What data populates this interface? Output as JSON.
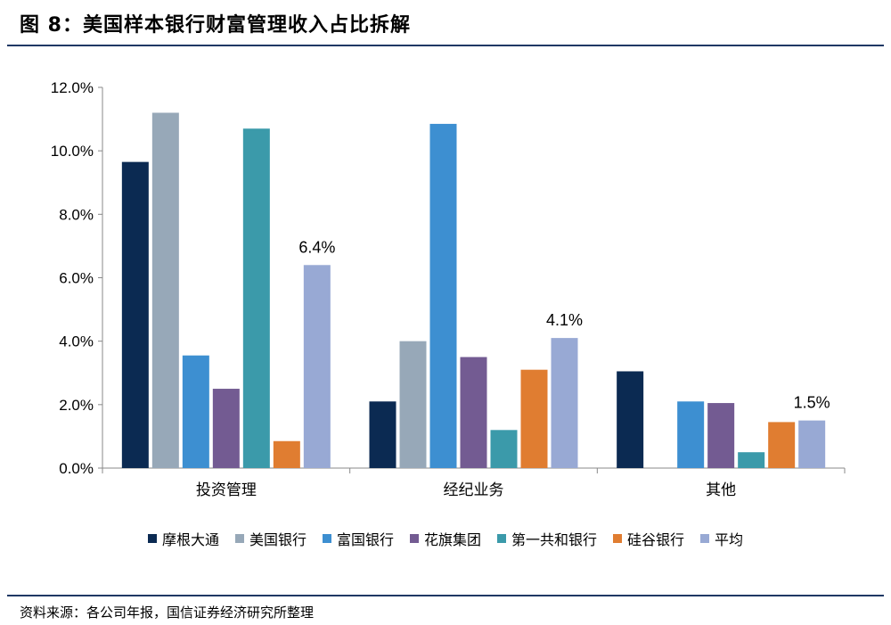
{
  "figure": {
    "title": "图 8：美国样本银行财富管理收入占比拆解",
    "source": "资料来源：各公司年报，国信证券经济研究所整理"
  },
  "chart_data": {
    "type": "bar",
    "categories": [
      "投资管理",
      "经纪业务",
      "其他"
    ],
    "series": [
      {
        "name": "摩根大通",
        "color": "#0b2a52",
        "values": [
          9.65,
          2.1,
          3.05
        ]
      },
      {
        "name": "美国银行",
        "color": "#97a8b8",
        "values": [
          11.2,
          4.0,
          null
        ]
      },
      {
        "name": "富国银行",
        "color": "#3d8fd1",
        "values": [
          3.55,
          10.85,
          2.1
        ]
      },
      {
        "name": "花旗集团",
        "color": "#735b92",
        "values": [
          2.5,
          3.5,
          2.05
        ]
      },
      {
        "name": "第一共和银行",
        "color": "#3b9aaa",
        "values": [
          10.7,
          1.2,
          0.5
        ]
      },
      {
        "name": "硅谷银行",
        "color": "#e07d31",
        "values": [
          0.85,
          3.1,
          1.45
        ]
      },
      {
        "name": "平均",
        "color": "#98a9d4",
        "values": [
          6.4,
          4.1,
          1.5
        ]
      }
    ],
    "data_labels": [
      {
        "series": "平均",
        "category": "投资管理",
        "text": "6.4%"
      },
      {
        "series": "平均",
        "category": "经纪业务",
        "text": "4.1%"
      },
      {
        "series": "平均",
        "category": "其他",
        "text": "1.5%"
      }
    ],
    "y_ticks": [
      "0.0%",
      "2.0%",
      "4.0%",
      "6.0%",
      "8.0%",
      "10.0%",
      "12.0%"
    ],
    "ylim": [
      0,
      12
    ],
    "xlabel": "",
    "ylabel": "",
    "grid": false,
    "legend_position": "bottom"
  }
}
